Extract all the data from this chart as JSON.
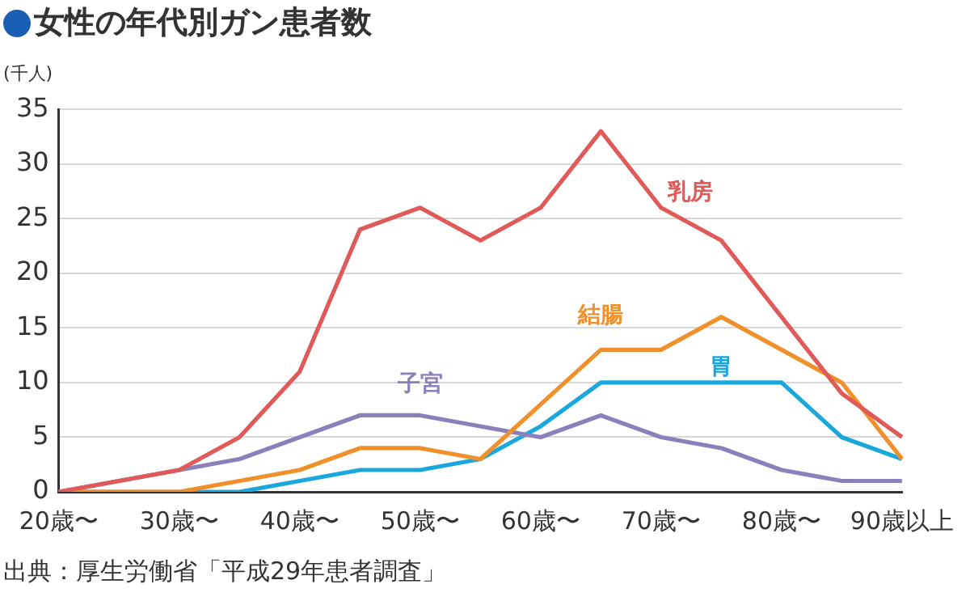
{
  "chart_data": {
    "type": "line",
    "title": "女性の年代別ガン患者数",
    "ylabel": "(千人)",
    "categories": [
      "20歳〜",
      null,
      "30歳〜",
      null,
      "40歳〜",
      null,
      "50歳〜",
      null,
      "60歳〜",
      null,
      "70歳〜",
      null,
      "80歳〜",
      null,
      "90歳以上"
    ],
    "series": [
      {
        "name": "乳房",
        "color": "#e05a5a",
        "values": [
          0,
          1,
          2,
          5,
          11,
          24,
          26,
          23,
          26,
          33,
          26,
          23,
          16,
          9,
          5
        ]
      },
      {
        "name": "結腸",
        "color": "#f0902a",
        "values": [
          0,
          0,
          0,
          1,
          2,
          4,
          4,
          3,
          8,
          13,
          13,
          16,
          13,
          10,
          3
        ]
      },
      {
        "name": "子宮",
        "color": "#8c80bc",
        "values": [
          0,
          null,
          2,
          3,
          5,
          7,
          7,
          6,
          5,
          7,
          5,
          4,
          2,
          1,
          1
        ]
      },
      {
        "name": "胃",
        "color": "#1aa8dc",
        "values": [
          0,
          0,
          0,
          0,
          1,
          2,
          2,
          3,
          6,
          10,
          10,
          10,
          10,
          5,
          3
        ]
      }
    ],
    "ylim": [
      0,
      35
    ],
    "yticks": [
      0,
      5,
      10,
      15,
      20,
      25,
      30,
      35
    ],
    "grid": "y",
    "legend": false,
    "marker": "none",
    "line_style": "solid",
    "annotations": [
      "出典：厚生労働省「平成29年患者調査」"
    ]
  }
}
